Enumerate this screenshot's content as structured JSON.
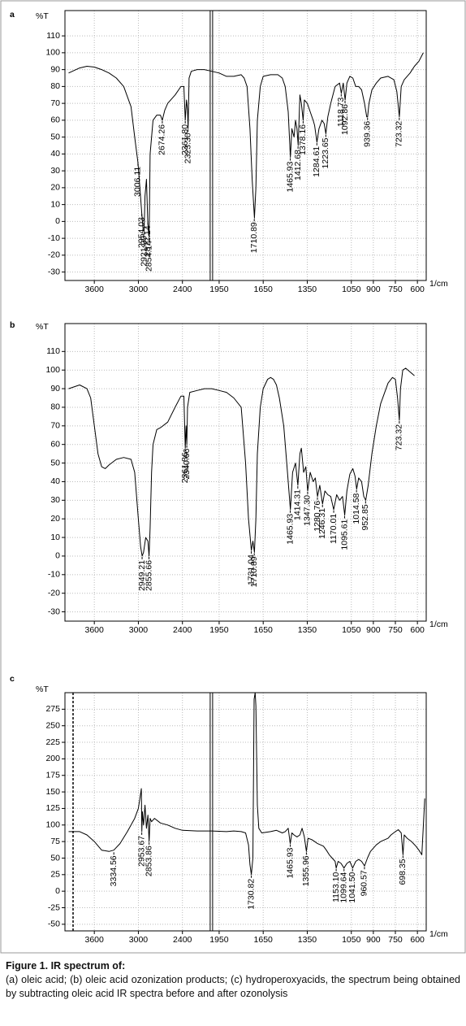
{
  "chart_data": [
    {
      "type": "line",
      "panel": "a",
      "y_label": "%T",
      "x_unit": "1/cm",
      "xlim": [
        4000,
        540
      ],
      "ylim": [
        -35,
        125
      ],
      "grid": true,
      "xticks": [
        3600,
        3000,
        2400,
        1950,
        1650,
        1350,
        1050,
        900,
        750,
        600
      ],
      "yticks": [
        -30,
        -20,
        -10,
        0,
        10,
        20,
        30,
        40,
        50,
        60,
        70,
        80,
        90,
        100,
        110
      ],
      "x": [
        3950,
        3800,
        3700,
        3600,
        3500,
        3400,
        3300,
        3200,
        3100,
        3050,
        3006,
        2980,
        2954,
        2935,
        2922,
        2910,
        2890,
        2872,
        2860,
        2854,
        2840,
        2800,
        2750,
        2700,
        2674,
        2640,
        2600,
        2500,
        2420,
        2380,
        2361,
        2345,
        2330,
        2323,
        2310,
        2280,
        2200,
        2100,
        2000,
        1950,
        1900,
        1850,
        1800,
        1780,
        1760,
        1740,
        1725,
        1710,
        1700,
        1690,
        1670,
        1650,
        1600,
        1550,
        1520,
        1500,
        1480,
        1465,
        1455,
        1440,
        1430,
        1420,
        1412,
        1400,
        1390,
        1378,
        1370,
        1350,
        1330,
        1310,
        1300,
        1284,
        1270,
        1250,
        1235,
        1223,
        1210,
        1190,
        1160,
        1130,
        1118,
        1105,
        1092,
        1080,
        1060,
        1040,
        1020,
        1000,
        980,
        960,
        945,
        939,
        930,
        910,
        880,
        850,
        800,
        760,
        740,
        723,
        710,
        690,
        650,
        620,
        590,
        560
      ],
      "series": [
        {
          "color": "#000000",
          "values": [
            88,
            91,
            92,
            91.5,
            90,
            88,
            85,
            80,
            68,
            50,
            35,
            20,
            5,
            -5,
            -6,
            15,
            25,
            0,
            -8,
            -9,
            40,
            60,
            63,
            63,
            60,
            66,
            70,
            75,
            80,
            80,
            60,
            72,
            66,
            55,
            85,
            89,
            90,
            90,
            89,
            88,
            86,
            86,
            87,
            85,
            80,
            55,
            25,
            2,
            20,
            60,
            80,
            86,
            87,
            87,
            85,
            80,
            65,
            38,
            55,
            50,
            60,
            55,
            45,
            75,
            70,
            60,
            72,
            70,
            65,
            60,
            57,
            47,
            55,
            60,
            58,
            52,
            62,
            70,
            80,
            82,
            76,
            82,
            72,
            82,
            86,
            85,
            80,
            80,
            78,
            70,
            62,
            62,
            70,
            78,
            82,
            85,
            86,
            84,
            77,
            62,
            80,
            84,
            88,
            92,
            95,
            100
          ]
        }
      ],
      "peak_labels": [
        {
          "value": 3006.11,
          "label": "3006.11",
          "y": 35
        },
        {
          "value": 2954.03,
          "label": "2954.03",
          "y": 5
        },
        {
          "value": 2921.99,
          "label": "2921.99",
          "y": -6
        },
        {
          "value": 2872.14,
          "label": "2872.14",
          "y": 0
        },
        {
          "value": 2854.14,
          "label": "2854.14",
          "y": -9
        },
        {
          "value": 2674.26,
          "label": "2674.26",
          "y": 60
        },
        {
          "value": 2361.8,
          "label": "2361.80",
          "y": 60
        },
        {
          "value": 2323.3,
          "label": "2323.30",
          "y": 55
        },
        {
          "value": 1710.89,
          "label": "1710.89",
          "y": 2
        },
        {
          "value": 1465.93,
          "label": "1465.93",
          "y": 38
        },
        {
          "value": 1412.68,
          "label": "1412.68",
          "y": 45
        },
        {
          "value": 1378.16,
          "label": "1378.16",
          "y": 60
        },
        {
          "value": 1284.61,
          "label": "1284.61",
          "y": 47
        },
        {
          "value": 1223.65,
          "label": "1223.65",
          "y": 52
        },
        {
          "value": 1118.73,
          "label": "1118.73",
          "y": 76
        },
        {
          "value": 1092.86,
          "label": "1092.86",
          "y": 72
        },
        {
          "value": 939.36,
          "label": "939.36",
          "y": 62
        },
        {
          "value": 723.32,
          "label": "723.32",
          "y": 62
        }
      ]
    },
    {
      "type": "line",
      "panel": "b",
      "y_label": "%T",
      "x_unit": "1/cm",
      "xlim": [
        4000,
        540
      ],
      "ylim": [
        -35,
        125
      ],
      "grid": true,
      "xticks": [
        3600,
        3000,
        2400,
        1950,
        1650,
        1350,
        1050,
        900,
        750,
        600
      ],
      "yticks": [
        -30,
        -20,
        -10,
        0,
        10,
        20,
        30,
        40,
        50,
        60,
        70,
        80,
        90,
        100,
        110
      ],
      "x": [
        3950,
        3800,
        3700,
        3650,
        3600,
        3550,
        3500,
        3450,
        3400,
        3300,
        3200,
        3100,
        3050,
        3000,
        2970,
        2949,
        2930,
        2900,
        2870,
        2855,
        2840,
        2820,
        2800,
        2750,
        2700,
        2600,
        2500,
        2420,
        2380,
        2361,
        2350,
        2340,
        2330,
        2300,
        2200,
        2100,
        2000,
        1950,
        1900,
        1850,
        1800,
        1770,
        1750,
        1731,
        1720,
        1710,
        1700,
        1690,
        1670,
        1650,
        1620,
        1600,
        1580,
        1560,
        1540,
        1510,
        1490,
        1465,
        1450,
        1430,
        1414,
        1400,
        1390,
        1375,
        1360,
        1347,
        1330,
        1310,
        1295,
        1280,
        1265,
        1246,
        1230,
        1210,
        1190,
        1170,
        1150,
        1130,
        1110,
        1095,
        1080,
        1060,
        1040,
        1025,
        1014,
        1000,
        980,
        965,
        952,
        935,
        910,
        880,
        850,
        800,
        770,
        750,
        735,
        723,
        715,
        700,
        680,
        650,
        620
      ],
      "series": [
        {
          "color": "#000000",
          "values": [
            90,
            92,
            90,
            85,
            70,
            55,
            48,
            47,
            49,
            52,
            53,
            52,
            45,
            20,
            5,
            0,
            2,
            10,
            8,
            0,
            15,
            45,
            60,
            68,
            69,
            72,
            80,
            86,
            86,
            58,
            70,
            60,
            80,
            88,
            89,
            90,
            90,
            89,
            88,
            85,
            80,
            50,
            20,
            3,
            8,
            2,
            20,
            55,
            80,
            90,
            95,
            96,
            95,
            92,
            85,
            70,
            50,
            25,
            45,
            50,
            38,
            55,
            58,
            45,
            48,
            35,
            45,
            40,
            42,
            32,
            38,
            28,
            35,
            33,
            32,
            25,
            33,
            30,
            32,
            22,
            35,
            44,
            47,
            43,
            36,
            42,
            40,
            32,
            30,
            38,
            55,
            70,
            82,
            93,
            96,
            95,
            85,
            73,
            90,
            100,
            101,
            99,
            97
          ]
        }
      ],
      "peak_labels": [
        {
          "value": 2949.21,
          "label": "2949.21",
          "y": 0
        },
        {
          "value": 2855.66,
          "label": "2855.66",
          "y": 0
        },
        {
          "value": 2361.86,
          "label": "2361.86",
          "y": 58
        },
        {
          "value": 2340.66,
          "label": "2340.66",
          "y": 60
        },
        {
          "value": 1731.04,
          "label": "1731.04",
          "y": 3
        },
        {
          "value": 1710.89,
          "label": "1710.89",
          "y": 2
        },
        {
          "value": 1465.93,
          "label": "1465.93",
          "y": 25
        },
        {
          "value": 1414.31,
          "label": "1414.31",
          "y": 38
        },
        {
          "value": 1347.3,
          "label": "1347.30",
          "y": 35
        },
        {
          "value": 1280.76,
          "label": "1280.76",
          "y": 32
        },
        {
          "value": 1246.31,
          "label": "1246.31",
          "y": 28
        },
        {
          "value": 1170.01,
          "label": "1170.01",
          "y": 25
        },
        {
          "value": 1095.61,
          "label": "1095.61",
          "y": 22
        },
        {
          "value": 1014.58,
          "label": "1014.58",
          "y": 36
        },
        {
          "value": 952.85,
          "label": "952.85",
          "y": 30
        },
        {
          "value": 723.32,
          "label": "723.32",
          "y": 73
        }
      ]
    },
    {
      "type": "line",
      "panel": "c",
      "y_label": "%T",
      "x_unit": "1/cm",
      "xlim": [
        4000,
        540
      ],
      "ylim": [
        -60,
        300
      ],
      "grid": true,
      "xticks": [
        3600,
        3000,
        2400,
        1950,
        1650,
        1350,
        1050,
        900,
        750,
        600
      ],
      "yticks": [
        -50,
        -25,
        0,
        25,
        50,
        75,
        100,
        125,
        150,
        175,
        200,
        225,
        250,
        275
      ],
      "x": [
        3950,
        3800,
        3700,
        3600,
        3500,
        3400,
        3334,
        3250,
        3150,
        3050,
        3000,
        2980,
        2960,
        2953,
        2945,
        2930,
        2910,
        2890,
        2870,
        2853,
        2840,
        2820,
        2780,
        2700,
        2600,
        2500,
        2400,
        2200,
        2000,
        1900,
        1850,
        1800,
        1770,
        1750,
        1740,
        1731,
        1720,
        1712,
        1705,
        1700,
        1690,
        1680,
        1660,
        1600,
        1560,
        1520,
        1500,
        1480,
        1466,
        1455,
        1440,
        1420,
        1400,
        1385,
        1370,
        1356,
        1345,
        1320,
        1300,
        1280,
        1260,
        1240,
        1220,
        1200,
        1180,
        1160,
        1153,
        1140,
        1120,
        1100,
        1080,
        1060,
        1041,
        1020,
        1000,
        980,
        965,
        960,
        940,
        920,
        880,
        850,
        800,
        780,
        750,
        730,
        710,
        698,
        690,
        670,
        640,
        610,
        590,
        570,
        550
      ],
      "series": [
        {
          "color": "#000000",
          "values": [
            90,
            90,
            85,
            75,
            62,
            60,
            62,
            72,
            90,
            110,
            125,
            140,
            155,
            90,
            120,
            100,
            130,
            95,
            115,
            75,
            110,
            105,
            110,
            103,
            100,
            95,
            92,
            91,
            91,
            90,
            91,
            90,
            88,
            70,
            40,
            25,
            50,
            290,
            300,
            280,
            130,
            95,
            88,
            90,
            92,
            88,
            90,
            95,
            72,
            88,
            85,
            82,
            85,
            95,
            82,
            60,
            80,
            78,
            75,
            72,
            70,
            68,
            62,
            55,
            50,
            45,
            35,
            45,
            42,
            35,
            42,
            45,
            35,
            45,
            48,
            45,
            40,
            38,
            50,
            60,
            70,
            75,
            80,
            85,
            90,
            93,
            88,
            55,
            85,
            80,
            75,
            68,
            62,
            55,
            140
          ]
        }
      ],
      "peak_labels": [
        {
          "value": 3334.56,
          "label": "3334.56",
          "y": 60
        },
        {
          "value": 2953.67,
          "label": "2953.67",
          "y": 90
        },
        {
          "value": 2853.86,
          "label": "2853.86",
          "y": 75
        },
        {
          "value": 1730.82,
          "label": "1730.82",
          "y": 25
        },
        {
          "value": 1465.93,
          "label": "1465.93",
          "y": 72
        },
        {
          "value": 1355.96,
          "label": "1355.96",
          "y": 60
        },
        {
          "value": 1153.1,
          "label": "1153.10",
          "y": 35
        },
        {
          "value": 1099.64,
          "label": "1099.64",
          "y": 35
        },
        {
          "value": 1041.5,
          "label": "1041.50",
          "y": 35
        },
        {
          "value": 960.57,
          "label": "960.57",
          "y": 38
        },
        {
          "value": 698.35,
          "label": "698.35",
          "y": 55
        }
      ]
    }
  ],
  "caption": {
    "title": "Figure 1. IR spectrum of:",
    "text": "(a) oleic acid; (b) oleic acid ozonization products; (c) hydroperoxyacids, the spectrum being obtained by subtracting oleic acid IR spectra before and after ozonolysis"
  }
}
